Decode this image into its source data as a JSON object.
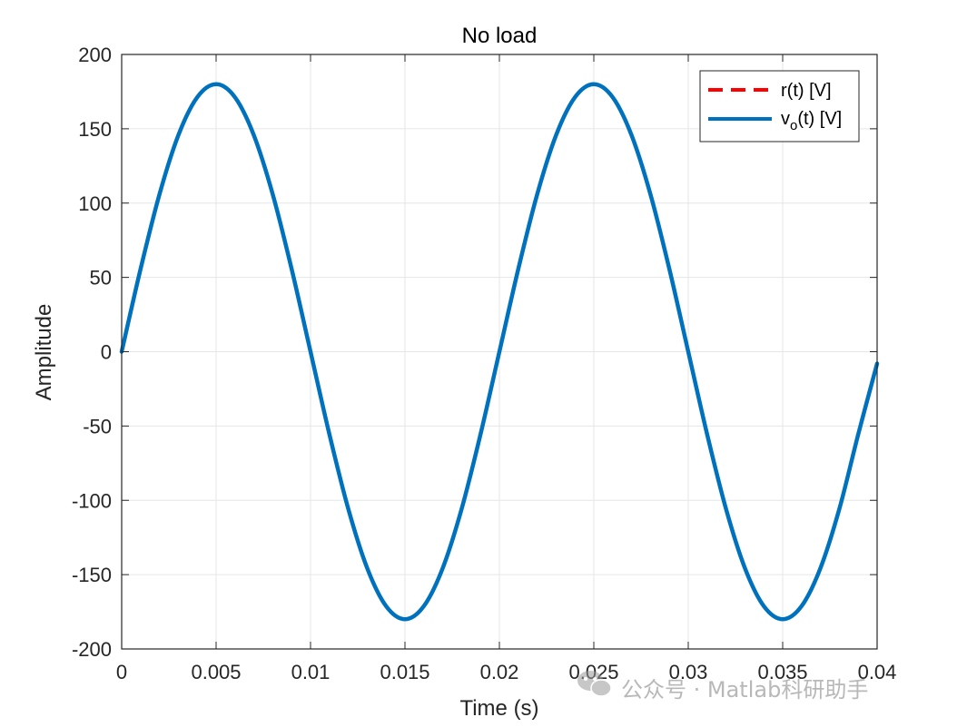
{
  "chart_data": {
    "type": "line",
    "title": "No load",
    "xlabel": "Time (s)",
    "ylabel": "Amplitude",
    "xlim": [
      0,
      0.04
    ],
    "ylim": [
      -200,
      200
    ],
    "grid": true,
    "legend_position": "top-right",
    "x_ticks": [
      "0",
      "0.005",
      "0.01",
      "0.015",
      "0.02",
      "0.025",
      "0.03",
      "0.035",
      "0.04"
    ],
    "y_ticks": [
      "200",
      "150",
      "100",
      "50",
      "0",
      "-50",
      "-100",
      "-150",
      "-200"
    ],
    "x": [
      0,
      0.001,
      0.002,
      0.003,
      0.004,
      0.005,
      0.006,
      0.007,
      0.008,
      0.009,
      0.01,
      0.011,
      0.012,
      0.013,
      0.014,
      0.015,
      0.016,
      0.017,
      0.018,
      0.019,
      0.02,
      0.021,
      0.022,
      0.023,
      0.024,
      0.025,
      0.026,
      0.027,
      0.028,
      0.029,
      0.03,
      0.031,
      0.032,
      0.033,
      0.034,
      0.035,
      0.036,
      0.037,
      0.038,
      0.039,
      0.04
    ],
    "series": [
      {
        "name": "r(t) [V]",
        "style": "dashed",
        "color": "#ff0000",
        "values": [
          0,
          55.6,
          105.8,
          145.6,
          171.2,
          180,
          171.2,
          145.6,
          105.8,
          55.6,
          0,
          -55.6,
          -105.8,
          -145.6,
          -171.2,
          -180,
          -171.2,
          -145.6,
          -105.8,
          -55.6,
          0,
          55.6,
          105.8,
          145.6,
          171.2,
          180,
          171.2,
          145.6,
          105.8,
          55.6,
          0,
          -55.6,
          -105.8,
          -145.6,
          -171.2,
          -180,
          -171.2,
          -145.6,
          -105.8,
          -55.6,
          -8
        ]
      },
      {
        "name": "v_o(t) [V]",
        "style": "solid",
        "color": "#0072bd",
        "values": [
          0,
          55.6,
          105.8,
          145.6,
          171.2,
          180,
          171.2,
          145.6,
          105.8,
          55.6,
          0,
          -55.6,
          -105.8,
          -145.6,
          -171.2,
          -180,
          -171.2,
          -145.6,
          -105.8,
          -55.6,
          0,
          55.6,
          105.8,
          145.6,
          171.2,
          180,
          171.2,
          145.6,
          105.8,
          55.6,
          0,
          -55.6,
          -105.8,
          -145.6,
          -171.2,
          -180,
          -171.2,
          -145.6,
          -105.8,
          -55.6,
          -8
        ]
      }
    ]
  },
  "legend": {
    "entries": [
      {
        "main": "r(t) [V]",
        "base": "",
        "sub": "",
        "rest": ""
      },
      {
        "main": "",
        "base": "v",
        "sub": "o",
        "rest": "(t) [V]"
      }
    ]
  },
  "watermark": {
    "text": "公众号 · Matlab科研助手",
    "icon": "wechat-icon",
    "color": "#b8b8b8"
  }
}
